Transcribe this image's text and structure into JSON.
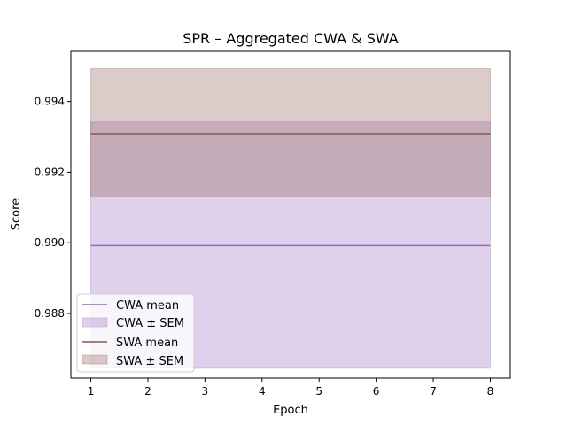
{
  "chart_data": {
    "type": "line",
    "title": "SPR – Aggregated CWA & SWA",
    "xlabel": "Epoch",
    "ylabel": "Score",
    "x": [
      1,
      2,
      3,
      4,
      5,
      6,
      7,
      8
    ],
    "xlim": [
      0.65,
      8.35
    ],
    "ylim": [
      0.98617,
      0.99542
    ],
    "xticks": [
      1,
      2,
      3,
      4,
      5,
      6,
      7,
      8
    ],
    "yticks": [
      0.988,
      0.99,
      0.992,
      0.994
    ],
    "ytick_labels": [
      "0.988",
      "0.990",
      "0.992",
      "0.994"
    ],
    "grid": false,
    "legend_position": "bottom-left",
    "series": [
      {
        "name": "CWA mean",
        "band_name": "CWA ± SEM",
        "color": "#9467bd",
        "values": [
          0.98992,
          0.98992,
          0.98992,
          0.98992,
          0.98992,
          0.98992,
          0.98992,
          0.98992
        ],
        "lower": [
          0.98645,
          0.98645,
          0.98645,
          0.98645,
          0.98645,
          0.98645,
          0.98645,
          0.98645
        ],
        "upper": [
          0.99342,
          0.99342,
          0.99342,
          0.99342,
          0.99342,
          0.99342,
          0.99342,
          0.99342
        ]
      },
      {
        "name": "SWA mean",
        "band_name": "SWA ± SEM",
        "color": "#8c564b",
        "values": [
          0.99309,
          0.99309,
          0.99309,
          0.99309,
          0.99309,
          0.99309,
          0.99309,
          0.99309
        ],
        "lower": [
          0.9913,
          0.9913,
          0.9913,
          0.9913,
          0.9913,
          0.9913,
          0.9913,
          0.9913
        ],
        "upper": [
          0.99493,
          0.99493,
          0.99493,
          0.99493,
          0.99493,
          0.99493,
          0.99493,
          0.99493
        ]
      }
    ]
  }
}
